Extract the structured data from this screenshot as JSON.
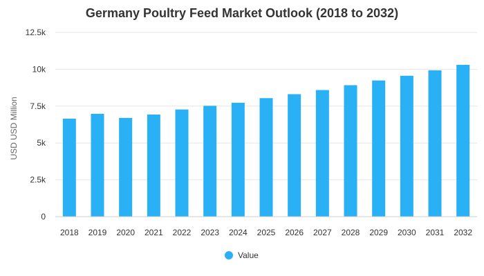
{
  "chart_data": {
    "type": "bar",
    "title": "Germany Poultry Feed Market Outlook (2018 to 2032)",
    "xlabel": "",
    "ylabel": "USD USD Million",
    "categories": [
      "2018",
      "2019",
      "2020",
      "2021",
      "2022",
      "2023",
      "2024",
      "2025",
      "2026",
      "2027",
      "2028",
      "2029",
      "2030",
      "2031",
      "2032"
    ],
    "series": [
      {
        "name": "Value",
        "color": "#2ab0f5",
        "values": [
          6650,
          6980,
          6700,
          6930,
          7270,
          7520,
          7730,
          8040,
          8310,
          8590,
          8920,
          9240,
          9560,
          9930,
          10300
        ]
      }
    ],
    "ylim": [
      0,
      12500
    ],
    "yticks": [
      0,
      2500,
      5000,
      7500,
      10000,
      12500
    ],
    "ytick_labels": [
      "0",
      "2.5k",
      "5k",
      "7.5k",
      "10k",
      "12.5k"
    ],
    "grid": true,
    "legend_position": "bottom-center"
  }
}
